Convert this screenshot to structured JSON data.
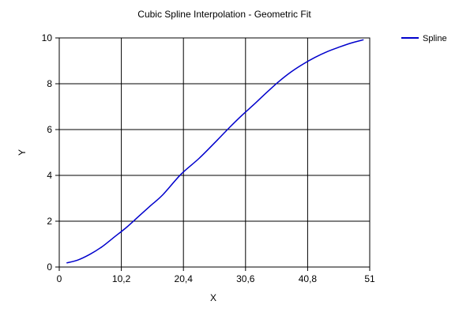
{
  "chart_data": {
    "type": "line",
    "title": "Cubic Spline Interpolation - Geometric Fit",
    "xlabel": "X",
    "ylabel": "Y",
    "xlim": [
      0,
      51
    ],
    "ylim": [
      0,
      10
    ],
    "x_ticks": [
      0,
      10.2,
      20.4,
      30.6,
      40.8,
      51
    ],
    "x_tick_labels": [
      "0",
      "10,2",
      "20,4",
      "30,6",
      "40,8",
      "51"
    ],
    "y_ticks": [
      0,
      2,
      4,
      6,
      8,
      10
    ],
    "y_tick_labels": [
      "0",
      "2",
      "4",
      "6",
      "8",
      "10"
    ],
    "grid": true,
    "legend_position": "top-right",
    "series": [
      {
        "name": "Spline",
        "color": "#0000cc",
        "x": [
          1.2,
          3,
          5,
          7,
          9,
          11,
          13,
          15,
          17,
          20,
          23,
          26,
          28,
          30,
          32,
          34,
          36,
          38,
          40,
          42,
          44,
          46,
          48,
          50
        ],
        "y": [
          0.18,
          0.3,
          0.55,
          0.88,
          1.3,
          1.72,
          2.2,
          2.68,
          3.15,
          4.05,
          4.75,
          5.55,
          6.1,
          6.62,
          7.1,
          7.6,
          8.08,
          8.5,
          8.85,
          9.15,
          9.4,
          9.6,
          9.78,
          9.92
        ]
      }
    ]
  }
}
